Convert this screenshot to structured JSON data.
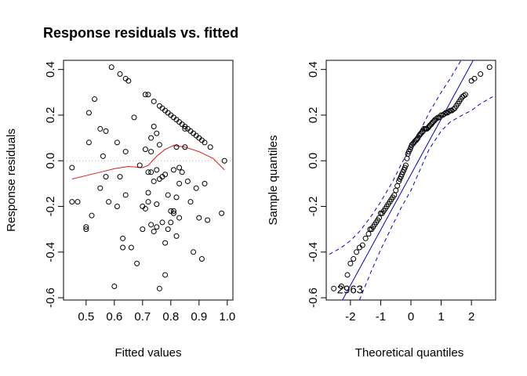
{
  "figure": {
    "title": "Response residuals vs. fitted"
  },
  "chart_data": [
    {
      "type": "scatter",
      "title": "Response residuals vs. fitted",
      "xlabel": "Fitted values",
      "ylabel": "Response residuals",
      "xlim": [
        0.42,
        1.02
      ],
      "ylim": [
        -0.61,
        0.44
      ],
      "xticks": [
        "0.5",
        "0.6",
        "0.7",
        "0.8",
        "0.9",
        "1.0"
      ],
      "xtick_values": [
        0.5,
        0.6,
        0.7,
        0.8,
        0.9,
        1.0
      ],
      "yticks": [
        "-0.6",
        "-0.4",
        "-0.2",
        "0.0",
        "0.2",
        "0.4"
      ],
      "ytick_values": [
        -0.6,
        -0.4,
        -0.2,
        0.0,
        0.2,
        0.4
      ],
      "reference_line": {
        "y": 0,
        "style": "dotted",
        "color": "#aaaaaa"
      },
      "smooth_color": "#e41a1c",
      "points": [
        [
          0.45,
          -0.03
        ],
        [
          0.45,
          -0.18
        ],
        [
          0.47,
          -0.18
        ],
        [
          0.5,
          -0.29
        ],
        [
          0.5,
          -0.3
        ],
        [
          0.51,
          0.08
        ],
        [
          0.51,
          0.21
        ],
        [
          0.52,
          -0.24
        ],
        [
          0.53,
          0.27
        ],
        [
          0.55,
          -0.12
        ],
        [
          0.55,
          0.14
        ],
        [
          0.56,
          0.02
        ],
        [
          0.57,
          -0.07
        ],
        [
          0.57,
          0.13
        ],
        [
          0.58,
          -0.18
        ],
        [
          0.59,
          0.41
        ],
        [
          0.6,
          -0.55
        ],
        [
          0.61,
          0.08
        ],
        [
          0.61,
          -0.2
        ],
        [
          0.62,
          0.38
        ],
        [
          0.62,
          -0.07
        ],
        [
          0.63,
          -0.34
        ],
        [
          0.63,
          -0.38
        ],
        [
          0.64,
          0.36
        ],
        [
          0.64,
          0.04
        ],
        [
          0.64,
          -0.15
        ],
        [
          0.65,
          0.35
        ],
        [
          0.66,
          -0.38
        ],
        [
          0.67,
          0.19
        ],
        [
          0.68,
          -0.45
        ],
        [
          0.69,
          -0.02
        ],
        [
          0.7,
          -0.2
        ],
        [
          0.7,
          -0.3
        ],
        [
          0.71,
          0.29
        ],
        [
          0.71,
          0.05
        ],
        [
          0.71,
          -0.21
        ],
        [
          0.72,
          0.29
        ],
        [
          0.72,
          -0.05
        ],
        [
          0.72,
          -0.18
        ],
        [
          0.72,
          -0.14
        ],
        [
          0.73,
          0.1
        ],
        [
          0.73,
          0.04
        ],
        [
          0.73,
          -0.05
        ],
        [
          0.73,
          -0.28
        ],
        [
          0.74,
          0.26
        ],
        [
          0.74,
          0.15
        ],
        [
          0.74,
          -0.09
        ],
        [
          0.74,
          -0.31
        ],
        [
          0.75,
          0.12
        ],
        [
          0.75,
          -0.04
        ],
        [
          0.75,
          -0.19
        ],
        [
          0.75,
          -0.29
        ],
        [
          0.76,
          0.24
        ],
        [
          0.76,
          0.07
        ],
        [
          0.76,
          -0.08
        ],
        [
          0.76,
          -0.56
        ],
        [
          0.77,
          0.23
        ],
        [
          0.77,
          -0.07
        ],
        [
          0.77,
          -0.27
        ],
        [
          0.78,
          0.22
        ],
        [
          0.78,
          -0.06
        ],
        [
          0.78,
          -0.5
        ],
        [
          0.78,
          -0.36
        ],
        [
          0.79,
          0.21
        ],
        [
          0.79,
          -0.15
        ],
        [
          0.79,
          -0.3
        ],
        [
          0.8,
          0.2
        ],
        [
          0.8,
          -0.22
        ],
        [
          0.8,
          -0.27
        ],
        [
          0.81,
          0.19
        ],
        [
          0.81,
          -0.04
        ],
        [
          0.81,
          -0.23
        ],
        [
          0.81,
          -0.22
        ],
        [
          0.82,
          0.18
        ],
        [
          0.82,
          0.06
        ],
        [
          0.82,
          -0.16
        ],
        [
          0.82,
          -0.33
        ],
        [
          0.83,
          0.17
        ],
        [
          0.83,
          -0.03
        ],
        [
          0.83,
          -0.1
        ],
        [
          0.83,
          -0.25
        ],
        [
          0.84,
          0.16
        ],
        [
          0.84,
          -0.05
        ],
        [
          0.85,
          0.15
        ],
        [
          0.85,
          0.14
        ],
        [
          0.85,
          0.06
        ],
        [
          0.86,
          0.14
        ],
        [
          0.86,
          -0.09
        ],
        [
          0.87,
          0.13
        ],
        [
          0.87,
          -0.18
        ],
        [
          0.88,
          0.12
        ],
        [
          0.88,
          -0.4
        ],
        [
          0.89,
          0.11
        ],
        [
          0.89,
          -0.12
        ],
        [
          0.9,
          0.1
        ],
        [
          0.9,
          -0.25
        ],
        [
          0.91,
          0.09
        ],
        [
          0.91,
          -0.43
        ],
        [
          0.92,
          0.08
        ],
        [
          0.92,
          -0.1
        ],
        [
          0.93,
          -0.26
        ],
        [
          0.94,
          0.06
        ],
        [
          0.98,
          -0.23
        ],
        [
          0.99,
          0.0
        ]
      ],
      "smooth": [
        [
          0.45,
          -0.08
        ],
        [
          0.5,
          -0.065
        ],
        [
          0.55,
          -0.05
        ],
        [
          0.6,
          -0.035
        ],
        [
          0.65,
          -0.025
        ],
        [
          0.7,
          -0.03
        ],
        [
          0.72,
          -0.02
        ],
        [
          0.75,
          0.02
        ],
        [
          0.78,
          0.05
        ],
        [
          0.81,
          0.067
        ],
        [
          0.85,
          0.06
        ],
        [
          0.9,
          0.04
        ],
        [
          0.95,
          0.01
        ],
        [
          0.99,
          -0.04
        ]
      ]
    },
    {
      "type": "scatter",
      "xlabel": "Theoretical quantiles",
      "ylabel": "Sample quantiles",
      "xlim": [
        -2.8,
        2.8
      ],
      "ylim": [
        -0.61,
        0.44
      ],
      "xticks": [
        "-2",
        "-1",
        "0",
        "1",
        "2"
      ],
      "xtick_values": [
        -2,
        -1,
        0,
        1,
        2
      ],
      "yticks": [
        "-0.6",
        "-0.4",
        "-0.2",
        "0.0",
        "0.2",
        "0.4"
      ],
      "ytick_values": [
        -0.6,
        -0.4,
        -0.2,
        0.0,
        0.2,
        0.4
      ],
      "qq_line_color": "#0000cd",
      "annotation": {
        "text": "2963",
        "x": -2.55,
        "y": -0.56
      },
      "qq_line": [
        [
          -2.8,
          -0.74
        ],
        [
          2.8,
          0.62
        ]
      ],
      "band_upper": [
        [
          -2.7,
          -0.41
        ],
        [
          -2.3,
          -0.38
        ],
        [
          -2.0,
          -0.35
        ],
        [
          -1.7,
          -0.31
        ],
        [
          -1.3,
          -0.24
        ],
        [
          -1.0,
          -0.18
        ],
        [
          -0.6,
          -0.09
        ],
        [
          -0.3,
          -0.01
        ],
        [
          0.0,
          0.06
        ],
        [
          0.3,
          0.13
        ],
        [
          0.6,
          0.21
        ],
        [
          1.0,
          0.3
        ],
        [
          1.3,
          0.36
        ],
        [
          1.7,
          0.45
        ]
      ],
      "band_lower": [
        [
          -1.7,
          -0.61
        ],
        [
          -1.3,
          -0.48
        ],
        [
          -1.0,
          -0.39
        ],
        [
          -0.6,
          -0.28
        ],
        [
          -0.3,
          -0.2
        ],
        [
          0.0,
          -0.13
        ],
        [
          0.3,
          -0.04
        ],
        [
          0.6,
          0.05
        ],
        [
          1.0,
          0.13
        ],
        [
          1.3,
          0.17
        ],
        [
          1.7,
          0.2
        ],
        [
          2.0,
          0.22
        ],
        [
          2.3,
          0.25
        ],
        [
          2.7,
          0.28
        ]
      ],
      "points": [
        [
          -2.55,
          -0.56
        ],
        [
          -2.3,
          -0.55
        ],
        [
          -2.1,
          -0.5
        ],
        [
          -2.0,
          -0.45
        ],
        [
          -1.9,
          -0.43
        ],
        [
          -1.8,
          -0.4
        ],
        [
          -1.7,
          -0.38
        ],
        [
          -1.6,
          -0.37
        ],
        [
          -1.5,
          -0.34
        ],
        [
          -1.4,
          -0.32
        ],
        [
          -1.35,
          -0.3
        ],
        [
          -1.3,
          -0.3
        ],
        [
          -1.25,
          -0.29
        ],
        [
          -1.2,
          -0.28
        ],
        [
          -1.15,
          -0.27
        ],
        [
          -1.1,
          -0.26
        ],
        [
          -1.05,
          -0.25
        ],
        [
          -1.0,
          -0.23
        ],
        [
          -0.95,
          -0.23
        ],
        [
          -0.9,
          -0.22
        ],
        [
          -0.85,
          -0.21
        ],
        [
          -0.8,
          -0.2
        ],
        [
          -0.75,
          -0.19
        ],
        [
          -0.7,
          -0.18
        ],
        [
          -0.65,
          -0.17
        ],
        [
          -0.6,
          -0.16
        ],
        [
          -0.55,
          -0.15
        ],
        [
          -0.5,
          -0.13
        ],
        [
          -0.45,
          -0.11
        ],
        [
          -0.4,
          -0.09
        ],
        [
          -0.37,
          -0.08
        ],
        [
          -0.33,
          -0.07
        ],
        [
          -0.3,
          -0.06
        ],
        [
          -0.27,
          -0.05
        ],
        [
          -0.23,
          -0.04
        ],
        [
          -0.2,
          -0.03
        ],
        [
          -0.17,
          -0.02
        ],
        [
          -0.13,
          0.01
        ],
        [
          -0.1,
          0.03
        ],
        [
          -0.07,
          0.04
        ],
        [
          -0.03,
          0.05
        ],
        [
          0.0,
          0.06
        ],
        [
          0.03,
          0.07
        ],
        [
          0.07,
          0.075
        ],
        [
          0.1,
          0.08
        ],
        [
          0.13,
          0.085
        ],
        [
          0.17,
          0.09
        ],
        [
          0.2,
          0.095
        ],
        [
          0.23,
          0.1
        ],
        [
          0.27,
          0.11
        ],
        [
          0.3,
          0.115
        ],
        [
          0.33,
          0.12
        ],
        [
          0.37,
          0.125
        ],
        [
          0.4,
          0.13
        ],
        [
          0.43,
          0.14
        ],
        [
          0.47,
          0.14
        ],
        [
          0.5,
          0.14
        ],
        [
          0.53,
          0.14
        ],
        [
          0.57,
          0.145
        ],
        [
          0.6,
          0.15
        ],
        [
          0.63,
          0.155
        ],
        [
          0.67,
          0.16
        ],
        [
          0.7,
          0.165
        ],
        [
          0.73,
          0.17
        ],
        [
          0.77,
          0.175
        ],
        [
          0.8,
          0.18
        ],
        [
          0.85,
          0.185
        ],
        [
          0.9,
          0.19
        ],
        [
          0.95,
          0.19
        ],
        [
          1.0,
          0.2
        ],
        [
          1.05,
          0.2
        ],
        [
          1.1,
          0.205
        ],
        [
          1.15,
          0.21
        ],
        [
          1.2,
          0.21
        ],
        [
          1.25,
          0.215
        ],
        [
          1.3,
          0.22
        ],
        [
          1.35,
          0.22
        ],
        [
          1.4,
          0.225
        ],
        [
          1.45,
          0.23
        ],
        [
          1.5,
          0.24
        ],
        [
          1.55,
          0.25
        ],
        [
          1.6,
          0.26
        ],
        [
          1.65,
          0.27
        ],
        [
          1.7,
          0.28
        ],
        [
          1.75,
          0.285
        ],
        [
          1.8,
          0.29
        ],
        [
          2.0,
          0.35
        ],
        [
          2.1,
          0.36
        ],
        [
          2.3,
          0.38
        ],
        [
          2.6,
          0.41
        ]
      ]
    }
  ]
}
